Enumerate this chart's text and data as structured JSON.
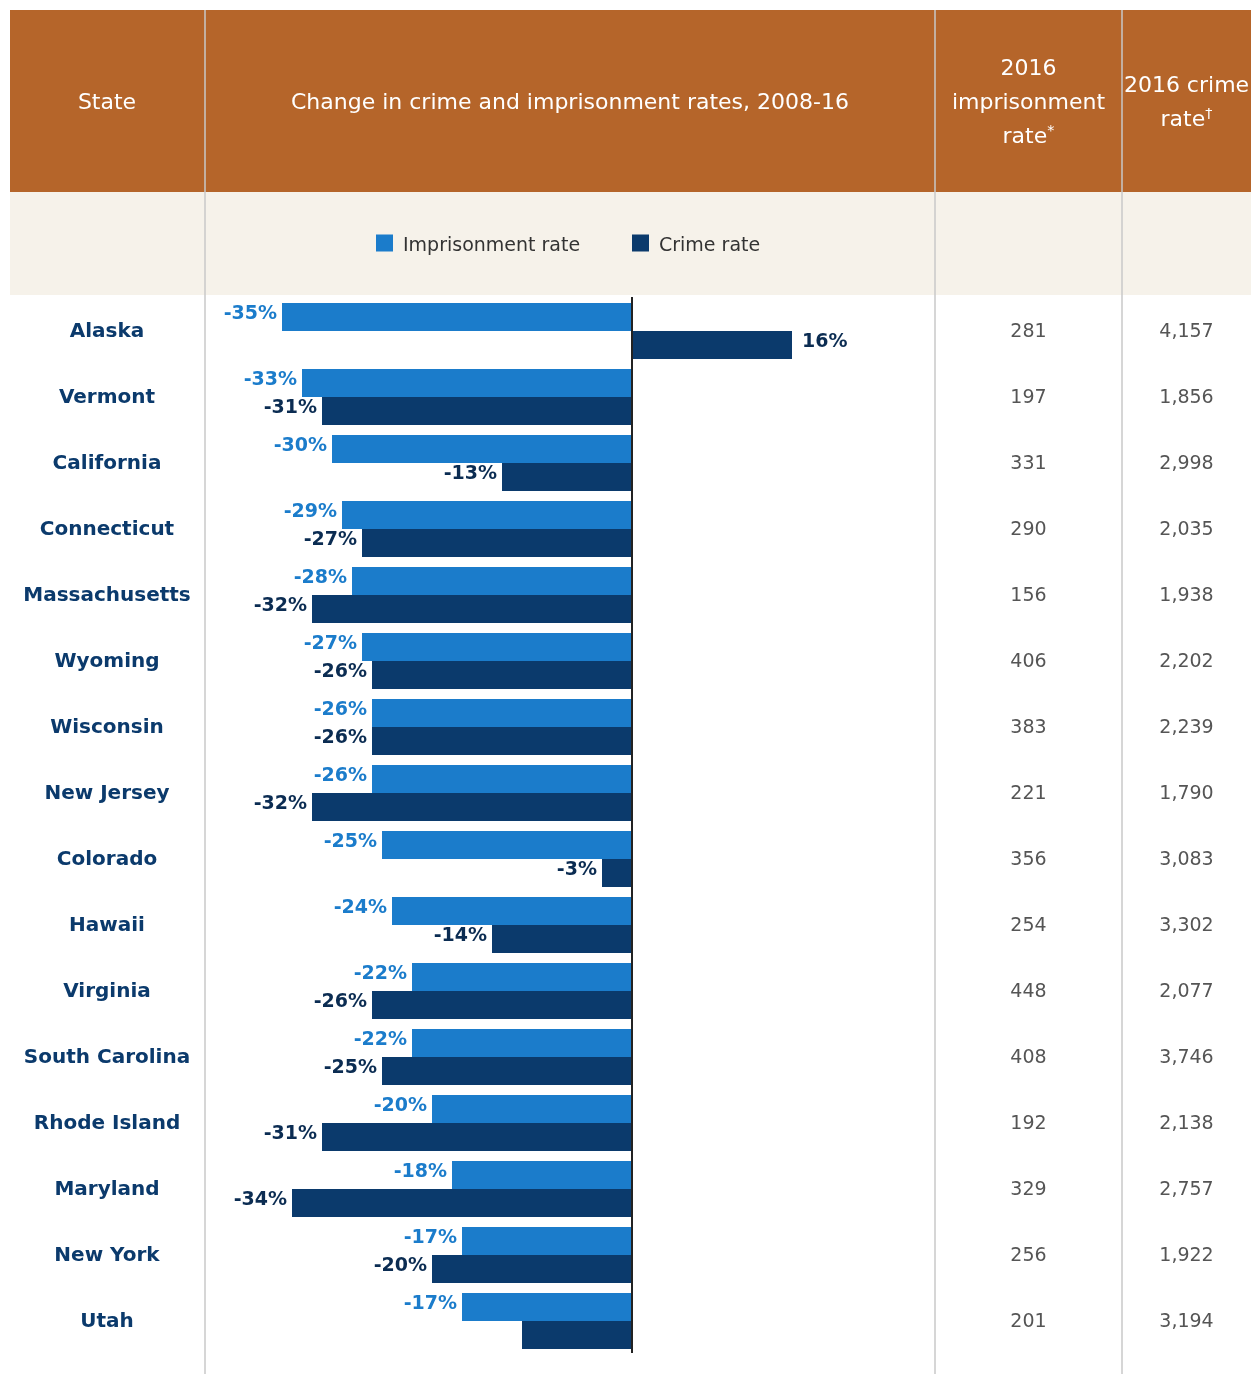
{
  "chart_data": [
    {
      "type": "bar",
      "orientation": "horizontal",
      "title": "Change in crime and imprisonment rates, 2008-16",
      "ylabel": "State",
      "legend": "top",
      "tick_labels": "y",
      "categories": [
        "Alaska",
        "Vermont",
        "California",
        "Connecticut",
        "Massachusetts",
        "Wyoming",
        "Wisconsin",
        "New Jersey",
        "Colorado",
        "Hawaii",
        "Virginia",
        "South Carolina",
        "Rhode Island",
        "Maryland",
        "New York",
        "Utah"
      ],
      "series": [
        {
          "name": "Imprisonment rate",
          "color": "#1b7ccb",
          "values": [
            -35,
            -33,
            -30,
            -29,
            -28,
            -27,
            -26,
            -26,
            -25,
            -24,
            -22,
            -22,
            -20,
            -18,
            -17,
            -17
          ],
          "value_labels": [
            "-35%",
            "-33%",
            "-30%",
            "-29%",
            "-28%",
            "-27%",
            "-26%",
            "-26%",
            "-25%",
            "-24%",
            "-22%",
            "-22%",
            "-20%",
            "-18%",
            "-17%",
            "-17%"
          ]
        },
        {
          "name": "Crime rate",
          "color": "#0b3a6c",
          "values": [
            16,
            -31,
            -13,
            -27,
            -32,
            -26,
            -26,
            -32,
            -3,
            -14,
            -26,
            -25,
            -31,
            -34,
            -20,
            -11
          ],
          "value_labels": [
            "16%",
            "-31%",
            "-13%",
            "-27%",
            "-32%",
            "-26%",
            "-26%",
            "-32%",
            "-3%",
            "-14%",
            "-26%",
            "-25%",
            "-31%",
            "-34%",
            "-20%",
            null
          ]
        }
      ]
    },
    {
      "type": "other",
      "title": "2016 imprisonment rate$^{*}$",
      "annotations": [
        "281",
        "197",
        "331",
        "290",
        "156",
        "406",
        "383",
        "221",
        "356",
        "254",
        "448",
        "408",
        "192",
        "329",
        "256",
        "201"
      ]
    },
    {
      "type": "other",
      "title": "2016 crime rate$^{†}$",
      "annotations": [
        "4,157",
        "1,856",
        "2,998",
        "2,035",
        "1,938",
        "2,202",
        "2,239",
        "1,790",
        "3,083",
        "3,302",
        "2,077",
        "3,746",
        "2,138",
        "2,757",
        "1,922",
        "3,194"
      ]
    }
  ]
}
